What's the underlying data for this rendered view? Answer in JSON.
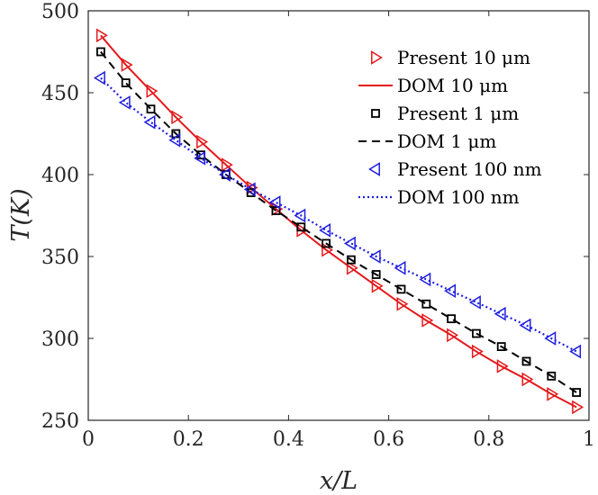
{
  "chart_data": {
    "type": "line",
    "xlabel": "x/L",
    "ylabel": "T(K)",
    "xlim": [
      0,
      1
    ],
    "ylim": [
      250,
      500
    ],
    "x_ticks": [
      0,
      0.2,
      0.4,
      0.6,
      0.8,
      1
    ],
    "x_tick_labels": [
      "0",
      "0.2",
      "0.4",
      "0.6",
      "0.8",
      "1"
    ],
    "y_ticks": [
      250,
      300,
      350,
      400,
      450,
      500
    ],
    "y_tick_labels": [
      "250",
      "300",
      "350",
      "400",
      "450",
      "500"
    ],
    "legend_position": "top-right",
    "x": [
      0.025,
      0.075,
      0.125,
      0.175,
      0.225,
      0.275,
      0.325,
      0.375,
      0.425,
      0.475,
      0.525,
      0.575,
      0.625,
      0.675,
      0.725,
      0.775,
      0.825,
      0.875,
      0.925,
      0.975
    ],
    "series": [
      {
        "name": "Present 10 μm",
        "kind": "marker",
        "marker": "triangle-right",
        "color": "#e41a1c",
        "values": [
          485,
          467,
          451,
          435,
          420,
          406,
          392,
          379,
          366,
          354,
          343,
          332,
          321,
          311,
          302,
          292,
          283,
          275,
          266,
          258
        ]
      },
      {
        "name": "DOM 10 μm",
        "kind": "line",
        "linestyle": "solid",
        "color": "#e41a1c",
        "values": [
          485,
          467,
          451,
          435,
          420,
          406,
          392,
          379,
          366,
          354,
          343,
          332,
          321,
          311,
          302,
          292,
          283,
          275,
          266,
          258
        ]
      },
      {
        "name": "Present 1 μm",
        "kind": "marker",
        "marker": "square",
        "color": "#000000",
        "values": [
          475,
          456,
          440,
          425,
          412,
          400,
          389,
          378,
          368,
          358,
          348,
          339,
          330,
          321,
          312,
          303,
          295,
          286,
          277,
          267
        ]
      },
      {
        "name": "DOM 1 μm",
        "kind": "line",
        "linestyle": "dashed",
        "color": "#000000",
        "values": [
          475,
          456,
          440,
          425,
          412,
          400,
          389,
          378,
          368,
          358,
          348,
          339,
          330,
          321,
          312,
          303,
          295,
          286,
          277,
          267
        ]
      },
      {
        "name": "Present 100 nm",
        "kind": "marker",
        "marker": "triangle-left",
        "color": "#1f1fe0",
        "values": [
          459,
          444,
          432,
          421,
          410,
          400,
          391,
          383,
          375,
          366,
          358,
          350,
          343,
          336,
          329,
          322,
          315,
          308,
          300,
          292
        ]
      },
      {
        "name": "DOM 100 nm",
        "kind": "line",
        "linestyle": "dotted",
        "color": "#1f1fe0",
        "values": [
          459,
          444,
          432,
          421,
          410,
          400,
          391,
          383,
          375,
          366,
          358,
          350,
          343,
          336,
          329,
          322,
          315,
          308,
          300,
          292
        ]
      }
    ]
  }
}
